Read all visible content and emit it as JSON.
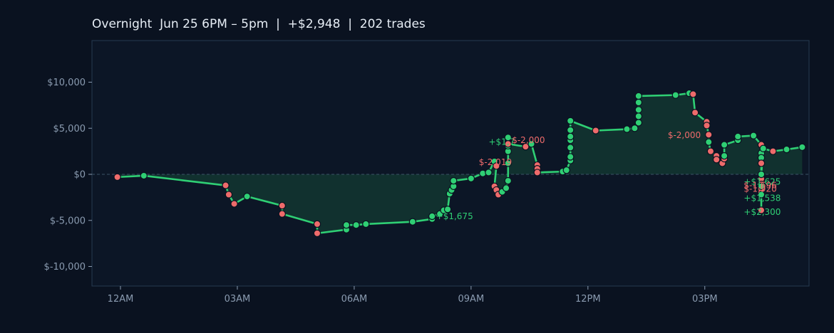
{
  "title": "Overnight  Jun 25 6PM – 5pm  |  +$2,948  |  202 trades",
  "chart_data": {
    "type": "line",
    "title": "Overnight  Jun 25 6PM – 5pm  |  +$2,948  |  202 trades",
    "xlabel": "",
    "ylabel": "",
    "x_unit": "hours after 12AM",
    "xlim": [
      -0.3,
      17.5
    ],
    "ylim": [
      -12000,
      14500
    ],
    "grid": false,
    "x_ticks": [
      {
        "value": 0,
        "label": "12AM"
      },
      {
        "value": 3,
        "label": "03AM"
      },
      {
        "value": 6,
        "label": "06AM"
      },
      {
        "value": 9,
        "label": "09AM"
      },
      {
        "value": 12,
        "label": "12PM"
      },
      {
        "value": 15,
        "label": "03PM"
      }
    ],
    "y_ticks": [
      {
        "value": 10000,
        "label": "$10,000"
      },
      {
        "value": 5000,
        "label": "$5,000"
      },
      {
        "value": 0,
        "label": "$0"
      },
      {
        "value": -5000,
        "label": "$-5,000"
      },
      {
        "value": -10000,
        "label": "$-10,000"
      }
    ],
    "colors": {
      "line": "#2fcf74",
      "fill": "#12332f",
      "win": "#2fcf74",
      "loss": "#ee6b6b",
      "zero_line": "#3a5266",
      "plot_bg": "#0c1626",
      "plot_border": "#263a50",
      "tick_text": "#8a9bb0"
    },
    "series": [
      {
        "values": [
          {
            "x": -0.08,
            "y": -300,
            "r": "loss"
          },
          {
            "x": 0.6,
            "y": -150,
            "r": "win"
          },
          {
            "x": 2.7,
            "y": -1200,
            "r": "loss"
          },
          {
            "x": 2.78,
            "y": -2200,
            "r": "loss"
          },
          {
            "x": 2.92,
            "y": -3200,
            "r": "loss"
          },
          {
            "x": 3.25,
            "y": -2400,
            "r": "win"
          },
          {
            "x": 4.15,
            "y": -3400,
            "r": "loss"
          },
          {
            "x": 4.15,
            "y": -4300,
            "r": "loss"
          },
          {
            "x": 5.05,
            "y": -5400,
            "r": "loss"
          },
          {
            "x": 5.05,
            "y": -6400,
            "r": "loss"
          },
          {
            "x": 5.8,
            "y": -6000,
            "r": "win"
          },
          {
            "x": 5.8,
            "y": -5500,
            "r": "win"
          },
          {
            "x": 6.05,
            "y": -5500,
            "r": "win"
          },
          {
            "x": 6.3,
            "y": -5400,
            "r": "win"
          },
          {
            "x": 7.5,
            "y": -5150,
            "r": "win"
          },
          {
            "x": 8.0,
            "y": -4850,
            "r": "win"
          },
          {
            "x": 8.0,
            "y": -4550,
            "r": "win"
          },
          {
            "x": 8.2,
            "y": -4300,
            "r": "win"
          },
          {
            "x": 8.3,
            "y": -3900,
            "r": "win"
          },
          {
            "x": 8.4,
            "y": -3800,
            "r": "win"
          },
          {
            "x": 8.45,
            "y": -2100,
            "r": "win"
          },
          {
            "x": 8.5,
            "y": -1700,
            "r": "win"
          },
          {
            "x": 8.55,
            "y": -1300,
            "r": "win"
          },
          {
            "x": 8.55,
            "y": -700,
            "r": "win"
          },
          {
            "x": 9.0,
            "y": -450,
            "r": "win"
          },
          {
            "x": 9.3,
            "y": 100,
            "r": "win"
          },
          {
            "x": 9.45,
            "y": 200,
            "r": "win"
          },
          {
            "x": 9.6,
            "y": 1400,
            "r": "win"
          },
          {
            "x": 9.65,
            "y": 900,
            "r": "loss"
          },
          {
            "x": 9.6,
            "y": -1300,
            "r": "loss"
          },
          {
            "x": 9.65,
            "y": -1700,
            "r": "loss"
          },
          {
            "x": 9.7,
            "y": -2200,
            "r": "loss"
          },
          {
            "x": 9.8,
            "y": -1900,
            "r": "win"
          },
          {
            "x": 9.9,
            "y": -1500,
            "r": "win"
          },
          {
            "x": 9.95,
            "y": -700,
            "r": "win"
          },
          {
            "x": 9.95,
            "y": 1200,
            "r": "win"
          },
          {
            "x": 9.95,
            "y": 2500,
            "r": "win"
          },
          {
            "x": 9.95,
            "y": 3100,
            "r": "win"
          },
          {
            "x": 9.95,
            "y": 4000,
            "r": "win"
          },
          {
            "x": 9.95,
            "y": 3300,
            "r": "loss"
          },
          {
            "x": 10.4,
            "y": 3000,
            "r": "loss"
          },
          {
            "x": 10.55,
            "y": 3300,
            "r": "win"
          },
          {
            "x": 10.7,
            "y": 1000,
            "r": "loss"
          },
          {
            "x": 10.7,
            "y": 600,
            "r": "loss"
          },
          {
            "x": 10.7,
            "y": 200,
            "r": "loss"
          },
          {
            "x": 11.35,
            "y": 300,
            "r": "win"
          },
          {
            "x": 11.45,
            "y": 450,
            "r": "win"
          },
          {
            "x": 11.55,
            "y": 1500,
            "r": "win"
          },
          {
            "x": 11.55,
            "y": 1900,
            "r": "win"
          },
          {
            "x": 11.55,
            "y": 2900,
            "r": "win"
          },
          {
            "x": 11.55,
            "y": 3700,
            "r": "win"
          },
          {
            "x": 11.55,
            "y": 4100,
            "r": "win"
          },
          {
            "x": 11.55,
            "y": 4800,
            "r": "win"
          },
          {
            "x": 11.55,
            "y": 5800,
            "r": "win"
          },
          {
            "x": 12.2,
            "y": 4750,
            "r": "loss"
          },
          {
            "x": 13.0,
            "y": 4900,
            "r": "win"
          },
          {
            "x": 13.2,
            "y": 5000,
            "r": "win"
          },
          {
            "x": 13.3,
            "y": 5600,
            "r": "win"
          },
          {
            "x": 13.3,
            "y": 6300,
            "r": "win"
          },
          {
            "x": 13.3,
            "y": 7000,
            "r": "win"
          },
          {
            "x": 13.3,
            "y": 7800,
            "r": "win"
          },
          {
            "x": 13.3,
            "y": 8500,
            "r": "win"
          },
          {
            "x": 14.25,
            "y": 8600,
            "r": "win"
          },
          {
            "x": 14.6,
            "y": 8800,
            "r": "win"
          },
          {
            "x": 14.7,
            "y": 8700,
            "r": "loss"
          },
          {
            "x": 14.75,
            "y": 6700,
            "r": "loss"
          },
          {
            "x": 15.05,
            "y": 5700,
            "r": "loss"
          },
          {
            "x": 15.05,
            "y": 5300,
            "r": "loss"
          },
          {
            "x": 15.1,
            "y": 4300,
            "r": "loss"
          },
          {
            "x": 15.1,
            "y": 3500,
            "r": "win"
          },
          {
            "x": 15.15,
            "y": 2500,
            "r": "loss"
          },
          {
            "x": 15.3,
            "y": 2000,
            "r": "loss"
          },
          {
            "x": 15.3,
            "y": 1600,
            "r": "loss"
          },
          {
            "x": 15.45,
            "y": 1200,
            "r": "loss"
          },
          {
            "x": 15.5,
            "y": 1700,
            "r": "loss"
          },
          {
            "x": 15.5,
            "y": 2000,
            "r": "win"
          },
          {
            "x": 15.5,
            "y": 3200,
            "r": "win"
          },
          {
            "x": 15.85,
            "y": 3700,
            "r": "win"
          },
          {
            "x": 15.85,
            "y": 4100,
            "r": "win"
          },
          {
            "x": 16.25,
            "y": 4200,
            "r": "win"
          },
          {
            "x": 16.45,
            "y": 3200,
            "r": "loss"
          },
          {
            "x": 16.45,
            "y": 2300,
            "r": "win"
          },
          {
            "x": 16.45,
            "y": 1800,
            "r": "win"
          },
          {
            "x": 16.45,
            "y": 1200,
            "r": "loss"
          },
          {
            "x": 16.45,
            "y": -500,
            "r": "loss"
          },
          {
            "x": 16.45,
            "y": -1100,
            "r": "loss"
          },
          {
            "x": 16.45,
            "y": -1600,
            "r": "loss"
          },
          {
            "x": 16.45,
            "y": -3900,
            "r": "loss"
          },
          {
            "x": 16.45,
            "y": -2200,
            "r": "win"
          },
          {
            "x": 16.45,
            "y": -1300,
            "r": "win"
          },
          {
            "x": 16.45,
            "y": 0,
            "r": "win"
          },
          {
            "x": 16.5,
            "y": 2800,
            "r": "win"
          },
          {
            "x": 16.75,
            "y": 2500,
            "r": "loss"
          },
          {
            "x": 17.1,
            "y": 2700,
            "r": "win"
          },
          {
            "x": 17.5,
            "y": 2948,
            "r": "win"
          }
        ]
      }
    ],
    "annotations": [
      {
        "text": "+$1,675",
        "x": 8.1,
        "y": -4550,
        "r": "win"
      },
      {
        "text": "$-2,019",
        "x": 9.2,
        "y": 1300,
        "r": "loss"
      },
      {
        "text": "+$1,7",
        "x": 9.45,
        "y": 3500,
        "r": "win"
      },
      {
        "text": "$-2,000",
        "x": 10.05,
        "y": 3700,
        "r": "loss"
      },
      {
        "text": "$-2,000",
        "x": 14.05,
        "y": 4250,
        "r": "loss"
      },
      {
        "text": "+$1,625",
        "x": 16.0,
        "y": -800,
        "r": "win"
      },
      {
        "text": "$-1,696",
        "x": 16.0,
        "y": -1200,
        "r": "loss"
      },
      {
        "text": "$-1,920",
        "x": 16.0,
        "y": -1600,
        "r": "loss"
      },
      {
        "text": "+$1,538",
        "x": 16.0,
        "y": -2600,
        "r": "win"
      },
      {
        "text": "+$2,300",
        "x": 16.0,
        "y": -4100,
        "r": "win"
      }
    ]
  }
}
